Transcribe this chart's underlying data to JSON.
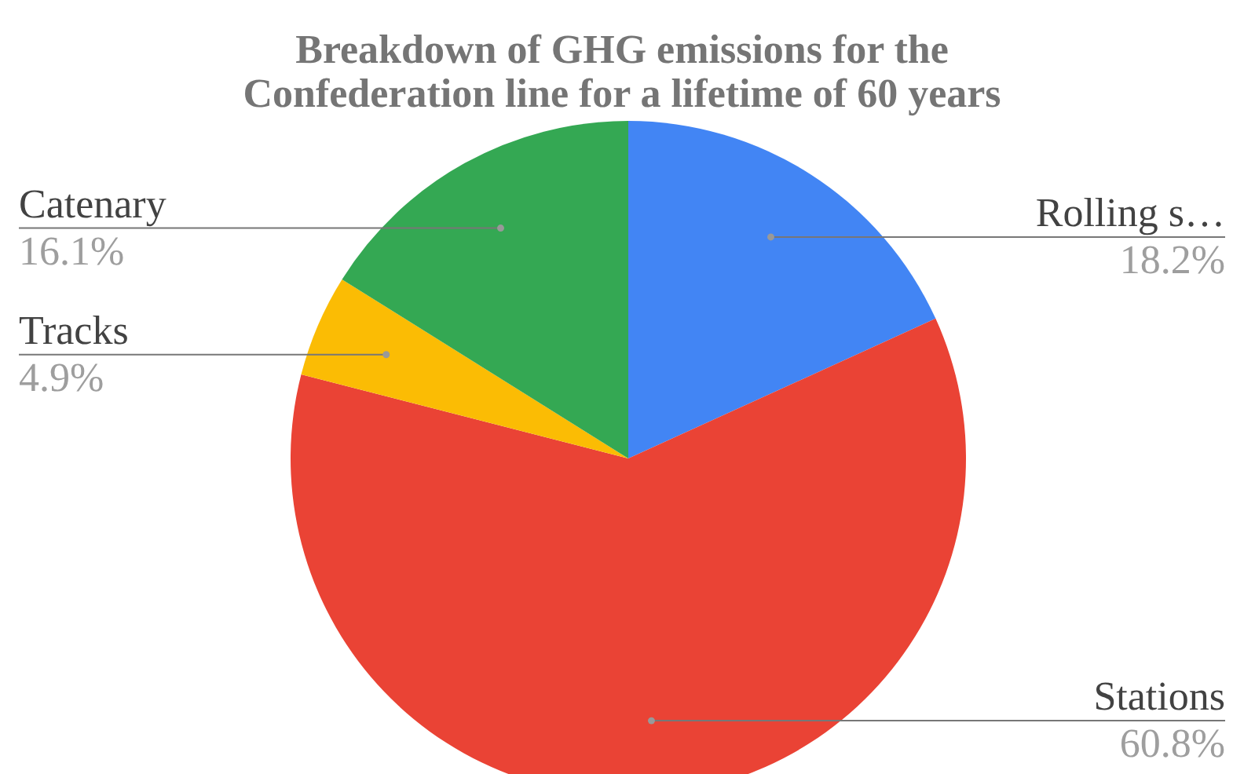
{
  "chart_data": {
    "type": "pie",
    "title": "Breakdown of GHG emissions for the\nConfederation line for a lifetime of 60 years",
    "categories": [
      "Rolling s…",
      "Stations",
      "Tracks",
      "Catenary"
    ],
    "values": [
      18.2,
      60.8,
      4.9,
      16.1
    ],
    "value_labels": [
      "18.2%",
      "60.8%",
      "4.9%",
      "16.1%"
    ],
    "colors": [
      "#4285f4",
      "#ea4335",
      "#fbbc04",
      "#34a853"
    ]
  }
}
